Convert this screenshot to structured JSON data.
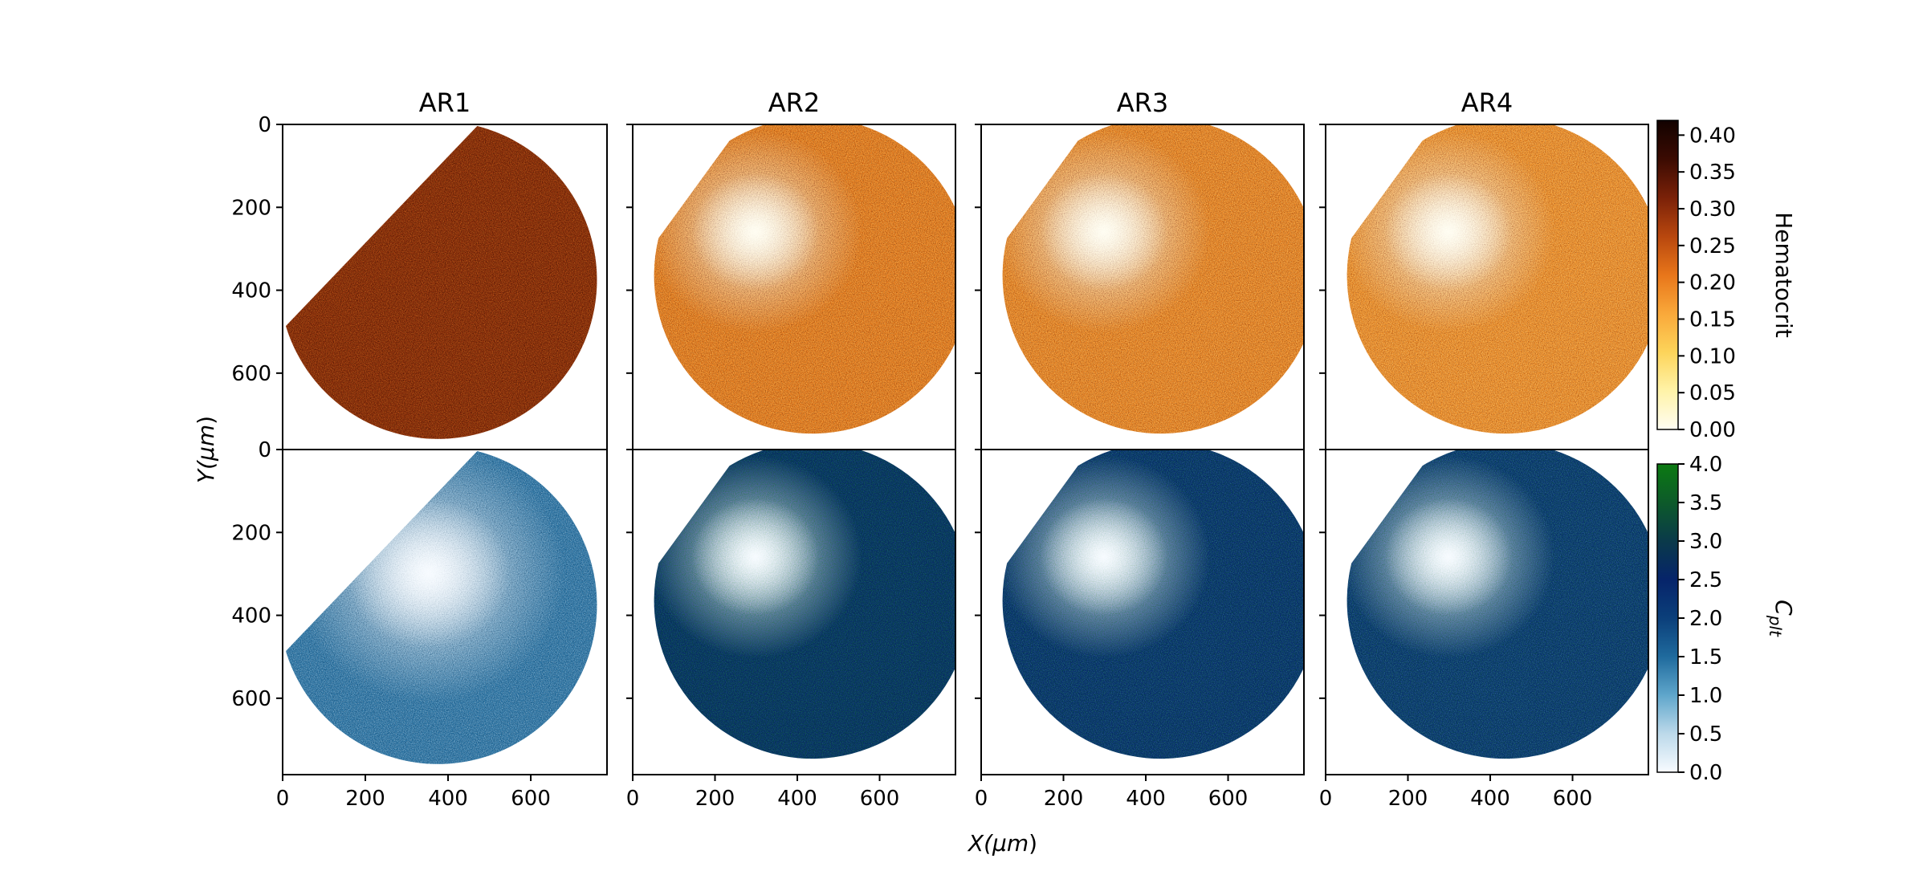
{
  "chart_data": {
    "type": "heatmap",
    "columns": [
      "AR1",
      "AR2",
      "AR3",
      "AR4"
    ],
    "rows": [
      {
        "quantity": "Hematocrit",
        "colorbar": {
          "label": "Hematocrit",
          "range": [
            0.0,
            0.42
          ],
          "ticks": [
            "0.00",
            "0.05",
            "0.10",
            "0.15",
            "0.20",
            "0.25",
            "0.30",
            "0.35",
            "0.40"
          ],
          "colors": [
            "#fffdf2",
            "#fff3a8",
            "#fdd45a",
            "#f9a83a",
            "#e8761a",
            "#b8470e",
            "#7a2108",
            "#3b0b02",
            "#120200"
          ]
        }
      },
      {
        "quantity": "C_plt",
        "colorbar": {
          "label": "C_plt",
          "label_main": "C",
          "label_sub": "plt",
          "range": [
            0.0,
            4.0
          ],
          "ticks": [
            "0.0",
            "0.5",
            "1.0",
            "1.5",
            "2.0",
            "2.5",
            "3.0",
            "3.5",
            "4.0"
          ],
          "colors": [
            "#f7fbff",
            "#bcd9ea",
            "#5fa6cb",
            "#1f6a9d",
            "#0b3f7a",
            "#06246a",
            "#0a3a4a",
            "#0d5a2a",
            "#0c7a12"
          ]
        }
      }
    ],
    "panels": [
      {
        "row": 0,
        "col": 0,
        "ar": "AR1",
        "x_ticks": [],
        "y_ticks": [
          "0",
          "200",
          "400",
          "600"
        ],
        "mean_level": 0.3
      },
      {
        "row": 0,
        "col": 1,
        "ar": "AR2",
        "x_ticks": [],
        "y_ticks": [],
        "mean_level": 0.2
      },
      {
        "row": 0,
        "col": 2,
        "ar": "AR3",
        "x_ticks": [],
        "y_ticks": [],
        "mean_level": 0.19
      },
      {
        "row": 0,
        "col": 3,
        "ar": "AR4",
        "x_ticks": [],
        "y_ticks": [],
        "mean_level": 0.18
      },
      {
        "row": 1,
        "col": 0,
        "ar": "AR1",
        "x_ticks": [
          "0",
          "200",
          "400",
          "600"
        ],
        "y_ticks": [
          "0",
          "200",
          "400",
          "600"
        ],
        "mean_level": 1.4
      },
      {
        "row": 1,
        "col": 1,
        "ar": "AR2",
        "x_ticks": [
          "0",
          "200",
          "400",
          "600"
        ],
        "y_ticks": [],
        "mean_level": 2.6
      },
      {
        "row": 1,
        "col": 2,
        "ar": "AR3",
        "x_ticks": [
          "0",
          "200",
          "400",
          "600"
        ],
        "y_ticks": [],
        "mean_level": 2.4
      },
      {
        "row": 1,
        "col": 3,
        "ar": "AR4",
        "x_ticks": [
          "0",
          "200",
          "400",
          "600"
        ],
        "y_ticks": [],
        "mean_level": 2.3
      }
    ],
    "x_label": "X(μm)",
    "x_label_main": "X(",
    "x_label_unit": "μm",
    "x_label_close": ")",
    "y_label": "Y(μm)",
    "y_label_main": "Y(",
    "y_label_unit": "μm",
    "y_label_close": ")",
    "grid": false,
    "legend": "right (two colorbars)"
  }
}
